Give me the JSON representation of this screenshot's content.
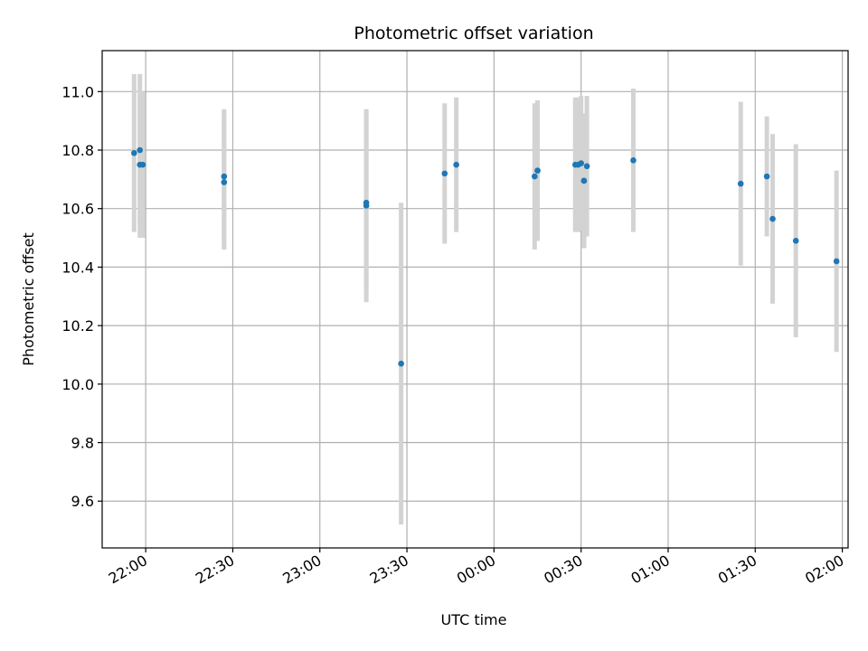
{
  "chart_data": {
    "type": "scatter",
    "title": "Photometric offset variation",
    "xlabel": "UTC time",
    "ylabel": "Photometric offset",
    "x_unit": "UTC time (HH:MM)",
    "xlim": [
      "21:45",
      "2:02"
    ],
    "ylim": [
      9.44,
      11.14
    ],
    "x_tick_labels": [
      "22:00",
      "22:30",
      "23:00",
      "23:30",
      "00:00",
      "00:30",
      "01:00",
      "01:30",
      "02:00"
    ],
    "x_tick_values": [
      "22:00",
      "22:30",
      "23:00",
      "23:30",
      "0:00",
      "0:30",
      "1:00",
      "1:30",
      "2:00"
    ],
    "y_ticks": [
      9.6,
      9.8,
      10.0,
      10.2,
      10.4,
      10.6,
      10.8,
      11.0
    ],
    "y_tick_labels": [
      "9.6",
      "9.8",
      "10.0",
      "10.2",
      "10.4",
      "10.6",
      "10.8",
      "11.0"
    ],
    "grid": true,
    "colors": {
      "marker": "#1f77b4",
      "errorbar": "#d3d3d3",
      "grid": "#b0b0b0"
    },
    "points": [
      {
        "x": "21:56",
        "y": 10.79,
        "err": 0.27
      },
      {
        "x": "21:58",
        "y": 10.75,
        "err": 0.25
      },
      {
        "x": "21:58",
        "y": 10.8,
        "err": 0.26
      },
      {
        "x": "21:59",
        "y": 10.75,
        "err": 0.25
      },
      {
        "x": "22:27",
        "y": 10.69,
        "err": 0.23
      },
      {
        "x": "22:27",
        "y": 10.71,
        "err": 0.23
      },
      {
        "x": "23:16",
        "y": 10.62,
        "err": 0.3
      },
      {
        "x": "23:16",
        "y": 10.61,
        "err": 0.33
      },
      {
        "x": "23:28",
        "y": 10.07,
        "err": 0.55
      },
      {
        "x": "23:43",
        "y": 10.72,
        "err": 0.24
      },
      {
        "x": "23:47",
        "y": 10.75,
        "err": 0.23
      },
      {
        "x": "0:14",
        "y": 10.71,
        "err": 0.25
      },
      {
        "x": "0:15",
        "y": 10.73,
        "err": 0.24
      },
      {
        "x": "0:15",
        "y": 10.73,
        "err": 0.24
      },
      {
        "x": "0:28",
        "y": 10.75,
        "err": 0.23
      },
      {
        "x": "0:29",
        "y": 10.75,
        "err": 0.23
      },
      {
        "x": "0:30",
        "y": 10.755,
        "err": 0.23
      },
      {
        "x": "0:31",
        "y": 10.695,
        "err": 0.23
      },
      {
        "x": "0:31",
        "y": 10.695,
        "err": 0.23
      },
      {
        "x": "0:32",
        "y": 10.745,
        "err": 0.24
      },
      {
        "x": "0:48",
        "y": 10.765,
        "err": 0.245
      },
      {
        "x": "1:25",
        "y": 10.685,
        "err": 0.28
      },
      {
        "x": "1:34",
        "y": 10.71,
        "err": 0.205
      },
      {
        "x": "1:36",
        "y": 10.565,
        "err": 0.29
      },
      {
        "x": "1:44",
        "y": 10.49,
        "err": 0.33
      },
      {
        "x": "1:58",
        "y": 10.42,
        "err": 0.31
      }
    ]
  }
}
